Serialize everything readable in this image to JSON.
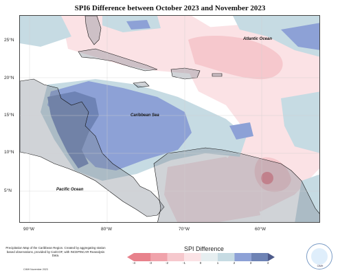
{
  "title": "SPI6 Difference between October 2023 and November 2023",
  "lat_labels": [
    "25°N",
    "20°N",
    "15°N",
    "10°N",
    "5°N"
  ],
  "lon_labels": [
    "90°W",
    "80°W",
    "70°W",
    "60°W"
  ],
  "places": {
    "atlantic": "Atlantic Ocean",
    "caribbean": "Caribbean Sea",
    "pacific": "Pacific Ocean"
  },
  "credit": {
    "text": "Precipitation Map of the Caribbean Region. Created by aggregating station based observations, provided by CariCOF, with INCEPINCAR Reanalysis Data.",
    "small": "CIMH November 2023"
  },
  "legend": {
    "title": "SPI Difference",
    "ticks": [
      "-4",
      "-3",
      "-2",
      "-1",
      "0",
      "1",
      "2",
      "3",
      "4"
    ],
    "colors": [
      "#e8828c",
      "#f0a3ab",
      "#f6c8cd",
      "#fbe2e5",
      "#e6eef0",
      "#c6dbe3",
      "#8da1d6",
      "#6e83b5",
      "#4d5a8a"
    ]
  },
  "logo": {
    "text": "CIMH"
  }
}
